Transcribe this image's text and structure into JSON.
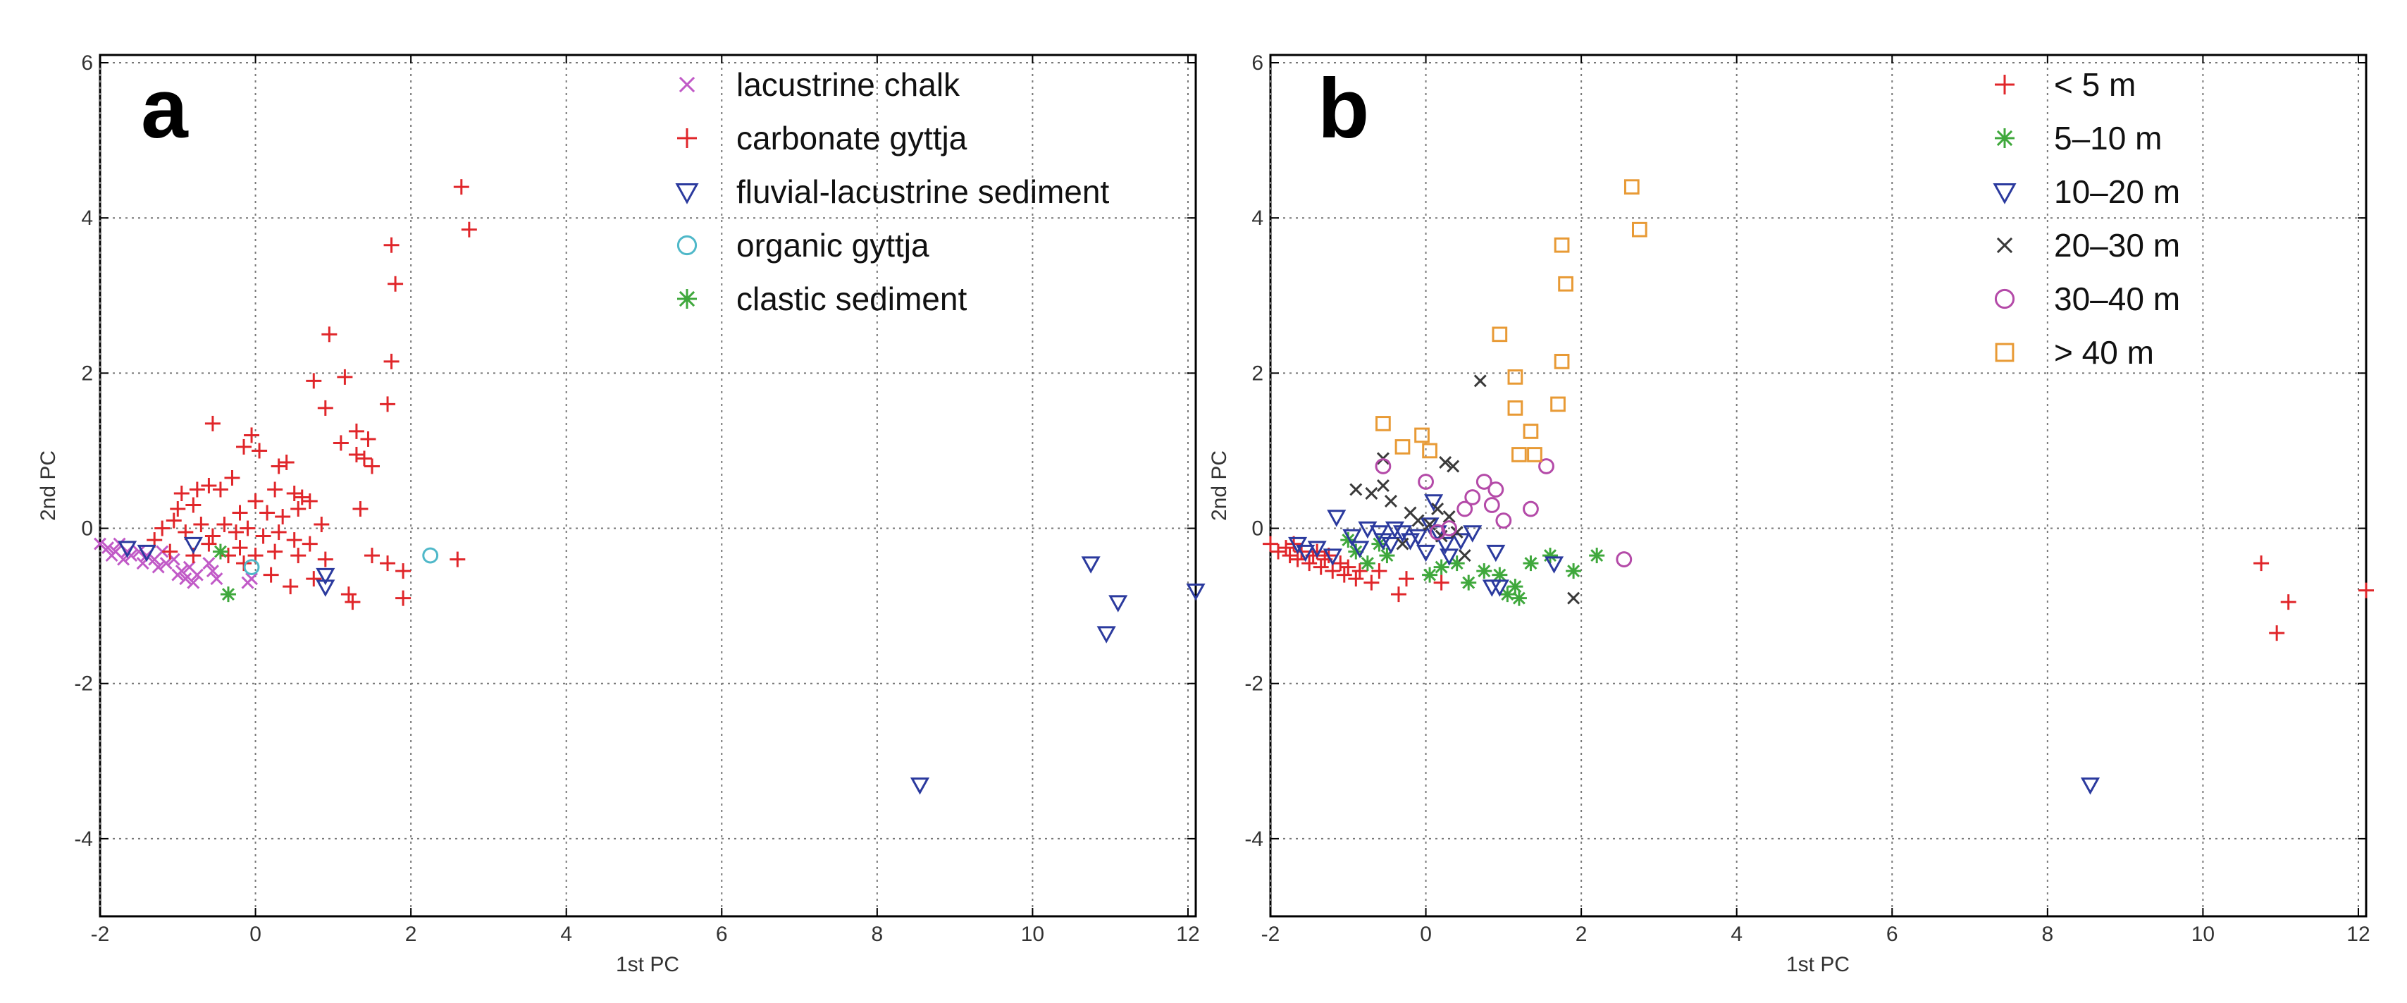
{
  "chart_data": [
    {
      "type": "scatter",
      "panel_label": "a",
      "xlabel": "1st PC",
      "ylabel": "2nd PC",
      "xlim": [
        -2,
        12.1
      ],
      "ylim": [
        -5,
        6.1
      ],
      "xticks": [
        "-2",
        "0",
        "2",
        "4",
        "6",
        "8",
        "10",
        "12"
      ],
      "yticks": [
        "-4",
        "-2",
        "0",
        "2",
        "4",
        "6"
      ],
      "grid": true,
      "legend_position": "top-right",
      "series": [
        {
          "name": "lacustrine chalk",
          "marker": "x",
          "color": "#c15ac7",
          "points": [
            [
              -2.0,
              -0.2
            ],
            [
              -1.9,
              -0.25
            ],
            [
              -1.85,
              -0.35
            ],
            [
              -1.8,
              -0.3
            ],
            [
              -1.75,
              -0.2
            ],
            [
              -1.7,
              -0.4
            ],
            [
              -1.65,
              -0.3
            ],
            [
              -1.6,
              -0.35
            ],
            [
              -1.5,
              -0.3
            ],
            [
              -1.45,
              -0.45
            ],
            [
              -1.4,
              -0.35
            ],
            [
              -1.3,
              -0.4
            ],
            [
              -1.25,
              -0.5
            ],
            [
              -1.2,
              -0.3
            ],
            [
              -1.15,
              -0.45
            ],
            [
              -1.05,
              -0.4
            ],
            [
              -1.0,
              -0.6
            ],
            [
              -0.95,
              -0.55
            ],
            [
              -0.9,
              -0.65
            ],
            [
              -0.85,
              -0.5
            ],
            [
              -0.8,
              -0.7
            ],
            [
              -0.75,
              -0.6
            ],
            [
              -0.6,
              -0.45
            ],
            [
              -0.55,
              -0.55
            ],
            [
              -0.5,
              -0.65
            ],
            [
              -0.1,
              -0.7
            ],
            [
              -0.05,
              -0.65
            ]
          ]
        },
        {
          "name": "carbonate gyttja",
          "marker": "+",
          "color": "#e0262a",
          "points": [
            [
              2.65,
              4.4
            ],
            [
              2.75,
              3.85
            ],
            [
              1.75,
              3.65
            ],
            [
              1.8,
              3.15
            ],
            [
              1.75,
              2.15
            ],
            [
              1.7,
              1.6
            ],
            [
              0.95,
              2.5
            ],
            [
              1.15,
              1.95
            ],
            [
              0.75,
              1.9
            ],
            [
              0.9,
              1.55
            ],
            [
              1.3,
              1.25
            ],
            [
              1.45,
              1.15
            ],
            [
              1.1,
              1.1
            ],
            [
              1.3,
              0.95
            ],
            [
              1.4,
              0.9
            ],
            [
              1.5,
              0.8
            ],
            [
              0.4,
              0.85
            ],
            [
              0.3,
              0.8
            ],
            [
              -0.55,
              1.35
            ],
            [
              -0.15,
              1.05
            ],
            [
              -0.05,
              1.2
            ],
            [
              0.05,
              1.0
            ],
            [
              -0.3,
              0.65
            ],
            [
              -0.45,
              0.5
            ],
            [
              -0.6,
              0.55
            ],
            [
              -0.75,
              0.5
            ],
            [
              -0.95,
              0.45
            ],
            [
              0.25,
              0.5
            ],
            [
              0.5,
              0.45
            ],
            [
              0.6,
              0.4
            ],
            [
              0.7,
              0.35
            ],
            [
              -0.8,
              0.3
            ],
            [
              -1.0,
              0.25
            ],
            [
              -0.2,
              0.2
            ],
            [
              0.0,
              0.35
            ],
            [
              0.15,
              0.2
            ],
            [
              0.35,
              0.15
            ],
            [
              0.55,
              0.25
            ],
            [
              0.85,
              0.05
            ],
            [
              1.35,
              0.25
            ],
            [
              -1.2,
              0.0
            ],
            [
              -1.05,
              0.1
            ],
            [
              -0.9,
              -0.05
            ],
            [
              -0.7,
              0.05
            ],
            [
              -0.55,
              -0.1
            ],
            [
              -0.4,
              0.05
            ],
            [
              -0.25,
              -0.05
            ],
            [
              -0.1,
              0.0
            ],
            [
              0.1,
              -0.1
            ],
            [
              0.3,
              -0.05
            ],
            [
              0.5,
              -0.15
            ],
            [
              0.7,
              -0.2
            ],
            [
              -1.3,
              -0.15
            ],
            [
              -0.6,
              -0.2
            ],
            [
              -0.2,
              -0.25
            ],
            [
              0.25,
              -0.3
            ],
            [
              0.55,
              -0.35
            ],
            [
              0.9,
              -0.4
            ],
            [
              1.5,
              -0.35
            ],
            [
              1.7,
              -0.45
            ],
            [
              1.9,
              -0.55
            ],
            [
              2.6,
              -0.4
            ],
            [
              0.2,
              -0.6
            ],
            [
              0.45,
              -0.75
            ],
            [
              0.75,
              -0.65
            ],
            [
              1.2,
              -0.85
            ],
            [
              1.25,
              -0.95
            ],
            [
              1.9,
              -0.9
            ],
            [
              -0.15,
              -0.45
            ],
            [
              -0.35,
              -0.35
            ],
            [
              -0.8,
              -0.35
            ],
            [
              -1.1,
              -0.3
            ],
            [
              0.0,
              -0.35
            ]
          ]
        },
        {
          "name": "fluvial-lacustrine sediment",
          "marker": "triangle-down",
          "color": "#2b3a9e",
          "points": [
            [
              8.55,
              -3.3
            ],
            [
              10.75,
              -0.45
            ],
            [
              11.1,
              -0.95
            ],
            [
              10.95,
              -1.35
            ],
            [
              12.1,
              -0.8
            ],
            [
              0.9,
              -0.6
            ],
            [
              0.9,
              -0.75
            ],
            [
              -1.65,
              -0.25
            ],
            [
              -1.4,
              -0.3
            ],
            [
              -0.8,
              -0.2
            ]
          ]
        },
        {
          "name": "organic gyttja",
          "marker": "circle",
          "color": "#4fb8c9",
          "points": [
            [
              2.25,
              -0.35
            ],
            [
              -0.05,
              -0.5
            ]
          ]
        },
        {
          "name": "clastic sediment",
          "marker": "*",
          "color": "#3fa83c",
          "points": [
            [
              -0.35,
              -0.85
            ],
            [
              -0.45,
              -0.3
            ]
          ]
        }
      ]
    },
    {
      "type": "scatter",
      "panel_label": "b",
      "xlabel": "1st PC",
      "ylabel": "2nd PC",
      "xlim": [
        -2,
        12.1
      ],
      "ylim": [
        -5,
        6.1
      ],
      "xticks": [
        "-2",
        "0",
        "2",
        "4",
        "6",
        "8",
        "10",
        "12"
      ],
      "yticks": [
        "-4",
        "-2",
        "0",
        "2",
        "4",
        "6"
      ],
      "grid": true,
      "legend_position": "top-right",
      "series": [
        {
          "name": "< 5 m",
          "marker": "+",
          "color": "#e0262a",
          "points": [
            [
              -2.0,
              -0.2
            ],
            [
              -1.9,
              -0.3
            ],
            [
              -1.8,
              -0.25
            ],
            [
              -1.75,
              -0.35
            ],
            [
              -1.7,
              -0.2
            ],
            [
              -1.65,
              -0.4
            ],
            [
              -1.6,
              -0.3
            ],
            [
              -1.5,
              -0.45
            ],
            [
              -1.45,
              -0.35
            ],
            [
              -1.4,
              -0.3
            ],
            [
              -1.35,
              -0.5
            ],
            [
              -1.3,
              -0.4
            ],
            [
              -1.25,
              -0.35
            ],
            [
              -1.2,
              -0.55
            ],
            [
              -1.1,
              -0.45
            ],
            [
              -1.05,
              -0.6
            ],
            [
              -1.0,
              -0.5
            ],
            [
              -0.9,
              -0.65
            ],
            [
              -0.85,
              -0.55
            ],
            [
              -0.7,
              -0.7
            ],
            [
              -0.6,
              -0.55
            ],
            [
              -0.35,
              -0.85
            ],
            [
              -0.25,
              -0.65
            ],
            [
              0.2,
              -0.7
            ],
            [
              10.75,
              -0.45
            ],
            [
              11.1,
              -0.95
            ],
            [
              10.95,
              -1.35
            ],
            [
              12.1,
              -0.8
            ]
          ]
        },
        {
          "name": "5–10 m",
          "marker": "*",
          "color": "#3fa83c",
          "points": [
            [
              -1.0,
              -0.15
            ],
            [
              -0.9,
              -0.3
            ],
            [
              -0.75,
              -0.45
            ],
            [
              -0.6,
              -0.2
            ],
            [
              -0.5,
              -0.35
            ],
            [
              0.05,
              -0.6
            ],
            [
              0.2,
              -0.5
            ],
            [
              0.4,
              -0.45
            ],
            [
              0.55,
              -0.7
            ],
            [
              0.75,
              -0.55
            ],
            [
              1.05,
              -0.85
            ],
            [
              1.15,
              -0.75
            ],
            [
              1.2,
              -0.9
            ],
            [
              1.35,
              -0.45
            ],
            [
              1.6,
              -0.35
            ],
            [
              1.9,
              -0.55
            ],
            [
              2.2,
              -0.35
            ],
            [
              0.95,
              -0.6
            ]
          ]
        },
        {
          "name": "10–20 m",
          "marker": "triangle-down",
          "color": "#2b3a9e",
          "points": [
            [
              8.55,
              -3.3
            ],
            [
              -1.65,
              -0.2
            ],
            [
              -1.55,
              -0.3
            ],
            [
              -1.4,
              -0.25
            ],
            [
              -1.2,
              -0.35
            ],
            [
              -1.15,
              0.15
            ],
            [
              -0.95,
              -0.1
            ],
            [
              -0.85,
              -0.25
            ],
            [
              -0.75,
              0.0
            ],
            [
              -0.6,
              -0.05
            ],
            [
              -0.55,
              -0.15
            ],
            [
              -0.45,
              -0.2
            ],
            [
              -0.4,
              0.0
            ],
            [
              -0.3,
              -0.05
            ],
            [
              -0.2,
              -0.15
            ],
            [
              -0.1,
              -0.1
            ],
            [
              0.0,
              -0.3
            ],
            [
              0.05,
              0.05
            ],
            [
              0.1,
              0.35
            ],
            [
              0.15,
              -0.05
            ],
            [
              0.25,
              -0.2
            ],
            [
              0.3,
              -0.35
            ],
            [
              0.45,
              -0.15
            ],
            [
              0.6,
              -0.05
            ],
            [
              0.85,
              -0.75
            ],
            [
              0.9,
              -0.3
            ],
            [
              0.95,
              -0.75
            ],
            [
              1.65,
              -0.45
            ]
          ]
        },
        {
          "name": "20–30 m",
          "marker": "x",
          "color": "#3a3a3a",
          "points": [
            [
              0.7,
              1.9
            ],
            [
              -0.55,
              0.9
            ],
            [
              0.25,
              0.85
            ],
            [
              0.35,
              0.8
            ],
            [
              -0.9,
              0.5
            ],
            [
              -0.7,
              0.45
            ],
            [
              -0.55,
              0.55
            ],
            [
              -0.45,
              0.35
            ],
            [
              -0.2,
              0.2
            ],
            [
              -0.1,
              0.1
            ],
            [
              0.05,
              0.05
            ],
            [
              0.15,
              0.25
            ],
            [
              0.3,
              0.15
            ],
            [
              0.4,
              -0.05
            ],
            [
              0.2,
              -0.1
            ],
            [
              -0.3,
              -0.2
            ],
            [
              1.9,
              -0.9
            ],
            [
              0.5,
              -0.35
            ]
          ]
        },
        {
          "name": "30–40 m",
          "marker": "circle",
          "color": "#b44aa8",
          "points": [
            [
              -0.55,
              0.8
            ],
            [
              0.0,
              0.6
            ],
            [
              0.6,
              0.4
            ],
            [
              0.75,
              0.6
            ],
            [
              0.85,
              0.3
            ],
            [
              1.0,
              0.1
            ],
            [
              1.55,
              0.8
            ],
            [
              1.35,
              0.25
            ],
            [
              0.9,
              0.5
            ],
            [
              0.5,
              0.25
            ],
            [
              0.3,
              0.0
            ],
            [
              0.15,
              -0.05
            ],
            [
              2.55,
              -0.4
            ]
          ]
        },
        {
          "name": "> 40 m",
          "marker": "square",
          "color": "#e89a35",
          "points": [
            [
              2.65,
              4.4
            ],
            [
              2.75,
              3.85
            ],
            [
              1.75,
              3.65
            ],
            [
              1.8,
              3.15
            ],
            [
              1.75,
              2.15
            ],
            [
              1.7,
              1.6
            ],
            [
              0.95,
              2.5
            ],
            [
              1.15,
              1.95
            ],
            [
              1.15,
              1.55
            ],
            [
              1.2,
              0.95
            ],
            [
              1.4,
              0.95
            ],
            [
              1.35,
              1.25
            ],
            [
              -0.55,
              1.35
            ],
            [
              -0.05,
              1.2
            ],
            [
              -0.3,
              1.05
            ],
            [
              0.05,
              1.0
            ]
          ]
        }
      ]
    }
  ]
}
